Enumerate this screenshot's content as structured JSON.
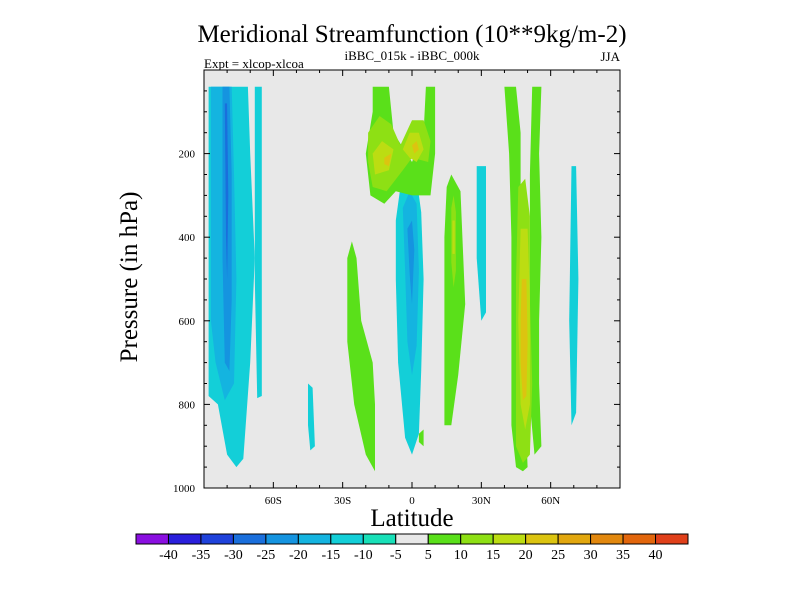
{
  "chart_data": {
    "type": "contour",
    "title": "Meridional Streamfunction (10**9kg/m-2)",
    "subtitle_center": "iBBC_015k - iBBC_000k",
    "subtitle_left": "Expt = xlcop-xlcoa",
    "subtitle_right": "JJA",
    "xlabel": "Latitude",
    "ylabel": "Pressure (in hPa)",
    "xlim": [
      -90,
      90
    ],
    "ylim": [
      1000,
      0
    ],
    "x_ticks": [
      {
        "value": -60,
        "label": "60S"
      },
      {
        "value": -30,
        "label": "30S"
      },
      {
        "value": 0,
        "label": "0"
      },
      {
        "value": 30,
        "label": "30N"
      },
      {
        "value": 60,
        "label": "60N"
      }
    ],
    "y_ticks": [
      {
        "value": 200,
        "label": "200"
      },
      {
        "value": 400,
        "label": "400"
      },
      {
        "value": 600,
        "label": "600"
      },
      {
        "value": 800,
        "label": "800"
      },
      {
        "value": 1000,
        "label": "1000"
      }
    ],
    "colorbar": {
      "labels": [
        "-40",
        "-35",
        "-30",
        "-25",
        "-20",
        "-15",
        "-10",
        "-5",
        "5",
        "10",
        "15",
        "20",
        "25",
        "30",
        "35",
        "40"
      ],
      "colors": [
        "#8a0fe0",
        "#2a1fdc",
        "#1f42db",
        "#1a6fdc",
        "#1594e0",
        "#14b4e0",
        "#13cfd8",
        "#18e0b8",
        "#e8e8e8",
        "#5ae01a",
        "#8ee014",
        "#bcdd12",
        "#dcc410",
        "#e2a70e",
        "#e2880e",
        "#e2660c",
        "#e0401a"
      ]
    },
    "contours": [
      {
        "name": "sh-negative-cell",
        "level": -10,
        "points": [
          [
            -88,
            40
          ],
          [
            -71,
            40
          ],
          [
            -70,
            200
          ],
          [
            -68,
            450
          ],
          [
            -70,
            700
          ],
          [
            -73,
            930
          ],
          [
            -76,
            950
          ],
          [
            -80,
            920
          ],
          [
            -84,
            800
          ],
          [
            -88,
            780
          ]
        ]
      },
      {
        "name": "sh-negative-cell",
        "level": -15,
        "points": [
          [
            -87,
            40
          ],
          [
            -78,
            40
          ],
          [
            -77,
            250
          ],
          [
            -76,
            500
          ],
          [
            -77,
            750
          ],
          [
            -81,
            790
          ],
          [
            -85,
            700
          ],
          [
            -87,
            600
          ]
        ]
      },
      {
        "name": "sh-negative-cell",
        "level": -20,
        "points": [
          [
            -82,
            40
          ],
          [
            -79,
            40
          ],
          [
            -78,
            250
          ],
          [
            -78,
            550
          ],
          [
            -79,
            720
          ],
          [
            -81,
            700
          ],
          [
            -82,
            450
          ]
        ]
      },
      {
        "name": "sh-negative-cell",
        "level": -25,
        "points": [
          [
            -81,
            80
          ],
          [
            -80,
            80
          ],
          [
            -79.5,
            300
          ],
          [
            -80,
            500
          ],
          [
            -80.5,
            400
          ]
        ]
      },
      {
        "name": "sh-negative-strip",
        "level": -10,
        "points": [
          [
            -68,
            40
          ],
          [
            -65,
            40
          ],
          [
            -65,
            370
          ],
          [
            -65,
            780
          ],
          [
            -67,
            785
          ],
          [
            -68,
            500
          ]
        ]
      },
      {
        "name": "subtropic-negative",
        "level": -10,
        "points": [
          [
            -45,
            750
          ],
          [
            -43,
            760
          ],
          [
            -42,
            900
          ],
          [
            -44,
            910
          ],
          [
            -45,
            850
          ]
        ]
      },
      {
        "name": "equatorial-negative",
        "level": -10,
        "points": [
          [
            -7,
            360
          ],
          [
            -5,
            280
          ],
          [
            -2,
            245
          ],
          [
            2,
            260
          ],
          [
            4,
            340
          ],
          [
            5,
            500
          ],
          [
            4,
            720
          ],
          [
            3,
            870
          ],
          [
            0,
            920
          ],
          [
            -3,
            880
          ],
          [
            -6,
            700
          ],
          [
            -7,
            500
          ]
        ]
      },
      {
        "name": "equatorial-negative",
        "level": -15,
        "points": [
          [
            -4,
            330
          ],
          [
            -1,
            290
          ],
          [
            2,
            320
          ],
          [
            3,
            480
          ],
          [
            2,
            660
          ],
          [
            0,
            730
          ],
          [
            -2,
            650
          ],
          [
            -3,
            480
          ]
        ]
      },
      {
        "name": "equatorial-negative",
        "level": -20,
        "points": [
          [
            -2,
            380
          ],
          [
            0,
            360
          ],
          [
            1,
            430
          ],
          [
            0,
            560
          ],
          [
            -1,
            490
          ]
        ]
      },
      {
        "name": "nh-negative-strip",
        "level": -10,
        "points": [
          [
            28,
            230
          ],
          [
            32,
            230
          ],
          [
            32,
            580
          ],
          [
            30,
            600
          ],
          [
            28,
            450
          ]
        ]
      },
      {
        "name": "nh-negative-strip",
        "level": -10,
        "points": [
          [
            69,
            230
          ],
          [
            71,
            230
          ],
          [
            72,
            500
          ],
          [
            71,
            820
          ],
          [
            69,
            850
          ],
          [
            68,
            600
          ]
        ]
      },
      {
        "name": "tropical-positive",
        "level": 5,
        "points": [
          [
            -17,
            40
          ],
          [
            -10,
            40
          ],
          [
            -8,
            150
          ],
          [
            0,
            220
          ],
          [
            5,
            150
          ],
          [
            6,
            40
          ],
          [
            10,
            40
          ],
          [
            10,
            200
          ],
          [
            8,
            300
          ],
          [
            0,
            300
          ],
          [
            -7,
            290
          ],
          [
            -12,
            320
          ],
          [
            -18,
            300
          ],
          [
            -20,
            200
          ],
          [
            -17,
            100
          ]
        ]
      },
      {
        "name": "tropical-positive",
        "level": 10,
        "points": [
          [
            -19,
            150
          ],
          [
            -14,
            110
          ],
          [
            -9,
            130
          ],
          [
            -5,
            180
          ],
          [
            0,
            120
          ],
          [
            5,
            120
          ],
          [
            8,
            170
          ],
          [
            7,
            220
          ],
          [
            0,
            210
          ],
          [
            -4,
            240
          ],
          [
            -11,
            290
          ],
          [
            -17,
            280
          ],
          [
            -19,
            220
          ]
        ]
      },
      {
        "name": "tropical-positive",
        "level": 15,
        "points": [
          [
            -17,
            200
          ],
          [
            -13,
            170
          ],
          [
            -8,
            190
          ],
          [
            -10,
            240
          ],
          [
            -16,
            250
          ]
        ]
      },
      {
        "name": "tropical-positive",
        "level": 15,
        "points": [
          [
            -4,
            190
          ],
          [
            -1,
            150
          ],
          [
            3,
            150
          ],
          [
            5,
            190
          ],
          [
            2,
            220
          ],
          [
            -1,
            210
          ]
        ]
      },
      {
        "name": "tropical-positive",
        "level": 20,
        "points": [
          [
            -12,
            210
          ],
          [
            -9,
            200
          ],
          [
            -10,
            230
          ],
          [
            -12,
            225
          ]
        ]
      },
      {
        "name": "tropical-positive",
        "level": 20,
        "points": [
          [
            0,
            180
          ],
          [
            2,
            170
          ],
          [
            3,
            190
          ],
          [
            1,
            200
          ]
        ]
      },
      {
        "name": "sh-subtropic-positive",
        "level": 5,
        "points": [
          [
            -28,
            450
          ],
          [
            -26,
            410
          ],
          [
            -24,
            450
          ],
          [
            -22,
            600
          ],
          [
            -17,
            700
          ],
          [
            -16,
            800
          ],
          [
            -16,
            960
          ],
          [
            -20,
            920
          ],
          [
            -25,
            800
          ],
          [
            -28,
            650
          ]
        ]
      },
      {
        "name": "nh-subtropic-positive",
        "level": 5,
        "points": [
          [
            15,
            280
          ],
          [
            17,
            250
          ],
          [
            21,
            290
          ],
          [
            23,
            560
          ],
          [
            20,
            730
          ],
          [
            17,
            850
          ],
          [
            14,
            850
          ],
          [
            14,
            600
          ],
          [
            14,
            400
          ]
        ]
      },
      {
        "name": "nh-subtropic-positive",
        "level": 10,
        "points": [
          [
            17,
            330
          ],
          [
            18,
            300
          ],
          [
            19,
            340
          ],
          [
            19,
            480
          ],
          [
            18,
            520
          ],
          [
            17,
            460
          ]
        ]
      },
      {
        "name": "nh-subtropic-positive",
        "level": 15,
        "points": [
          [
            17.5,
            360
          ],
          [
            18.5,
            360
          ],
          [
            18.5,
            440
          ],
          [
            17.5,
            440
          ]
        ]
      },
      {
        "name": "small-positive",
        "level": 5,
        "points": [
          [
            3,
            870
          ],
          [
            5,
            860
          ],
          [
            5,
            900
          ],
          [
            3,
            890
          ]
        ]
      },
      {
        "name": "nh-midlat-positive",
        "level": 5,
        "points": [
          [
            40,
            40
          ],
          [
            45,
            40
          ],
          [
            47,
            150
          ],
          [
            47,
            300
          ],
          [
            48,
            500
          ],
          [
            49,
            650
          ],
          [
            49,
            800
          ],
          [
            50,
            950
          ],
          [
            48,
            960
          ],
          [
            45,
            950
          ],
          [
            43,
            850
          ],
          [
            43,
            600
          ],
          [
            43,
            400
          ],
          [
            42,
            200
          ]
        ]
      },
      {
        "name": "nh-midlat-positive",
        "level": 5,
        "points": [
          [
            52,
            40
          ],
          [
            56,
            40
          ],
          [
            55,
            200
          ],
          [
            56,
            400
          ],
          [
            55,
            600
          ],
          [
            55,
            750
          ],
          [
            56,
            900
          ],
          [
            53,
            920
          ],
          [
            51,
            800
          ],
          [
            51,
            500
          ],
          [
            51,
            250
          ]
        ]
      },
      {
        "name": "nh-midlat-positive",
        "level": 10,
        "points": [
          [
            46,
            280
          ],
          [
            49,
            260
          ],
          [
            51,
            350
          ],
          [
            51,
            550
          ],
          [
            52,
            750
          ],
          [
            51,
            920
          ],
          [
            48,
            940
          ],
          [
            45,
            900
          ],
          [
            45,
            700
          ],
          [
            45,
            500
          ]
        ]
      },
      {
        "name": "nh-midlat-positive",
        "level": 15,
        "points": [
          [
            47,
            380
          ],
          [
            50,
            380
          ],
          [
            51,
            550
          ],
          [
            51,
            800
          ],
          [
            49,
            860
          ],
          [
            47,
            800
          ],
          [
            46,
            600
          ]
        ]
      },
      {
        "name": "nh-midlat-positive",
        "level": 20,
        "points": [
          [
            47.5,
            500
          ],
          [
            49.5,
            500
          ],
          [
            50,
            650
          ],
          [
            49.5,
            780
          ],
          [
            48,
            790
          ],
          [
            47,
            700
          ],
          [
            47,
            600
          ]
        ]
      }
    ]
  }
}
